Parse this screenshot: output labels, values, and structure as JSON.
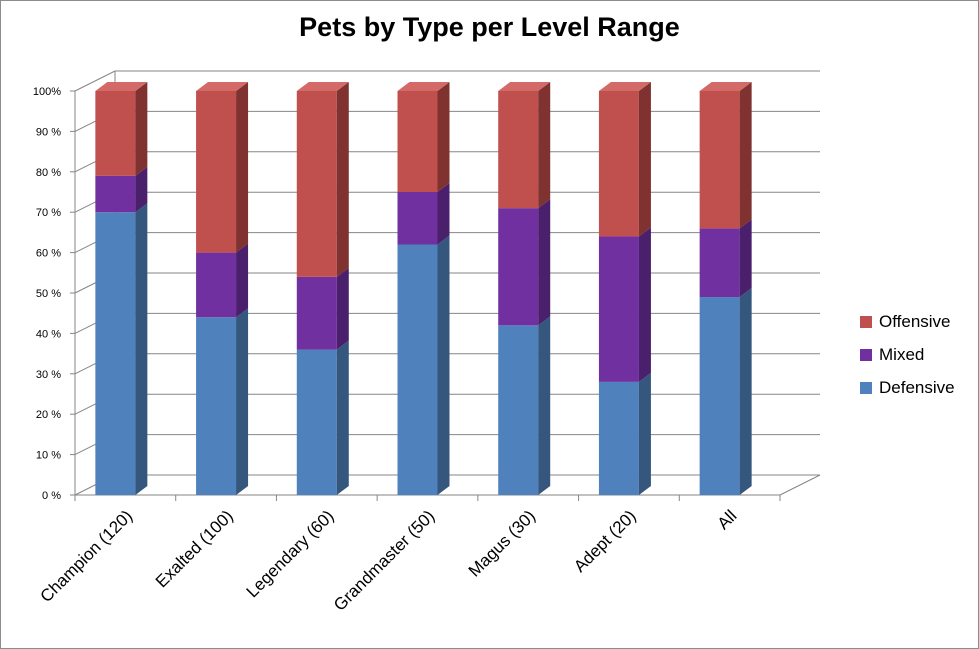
{
  "chart_data": {
    "type": "bar",
    "stacked": true,
    "percent": true,
    "three_d": true,
    "title": "Pets by Type per Level Range",
    "xlabel": "",
    "ylabel": "",
    "ylim": [
      0,
      100
    ],
    "yticks": [
      "0 %",
      "10 %",
      "20 %",
      "30 %",
      "40 %",
      "50 %",
      "60 %",
      "70 %",
      "80 %",
      "90 %",
      "100%"
    ],
    "categories": [
      "Champion (120)",
      "Exalted (100)",
      "Legendary (60)",
      "Grandmaster (50)",
      "Magus (30)",
      "Adept (20)",
      "All"
    ],
    "series": [
      {
        "name": "Defensive",
        "values": [
          70,
          44,
          36,
          62,
          42,
          28,
          49
        ],
        "color": "#4f81bd",
        "side": "#35567d",
        "top": "#6a96cd"
      },
      {
        "name": "Mixed",
        "values": [
          9,
          16,
          18,
          13,
          29,
          36,
          17
        ],
        "color": "#7030a0",
        "side": "#4a1f6b",
        "top": "#8a4bbb"
      },
      {
        "name": "Offensive",
        "values": [
          21,
          40,
          46,
          25,
          29,
          36,
          34
        ],
        "color": "#c0504d",
        "side": "#7f3230",
        "top": "#d46a67"
      }
    ],
    "legend_position": "right",
    "legend_order": [
      "Offensive",
      "Mixed",
      "Defensive"
    ],
    "grid": true
  }
}
